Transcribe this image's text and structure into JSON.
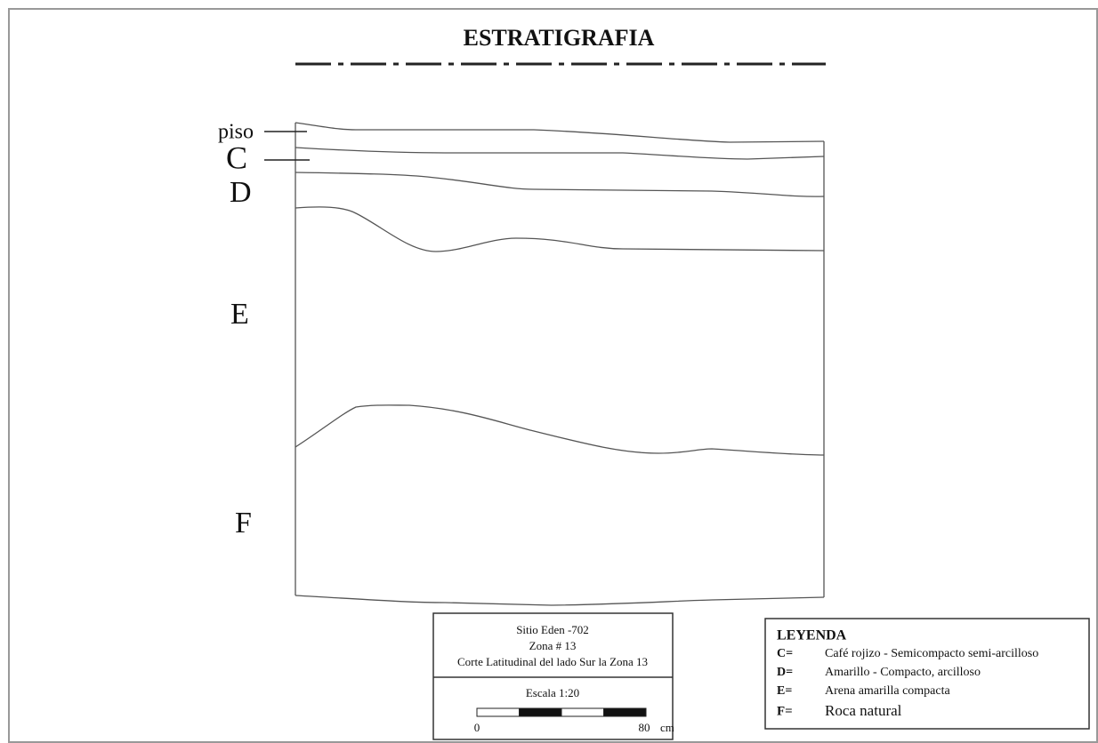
{
  "title": "ESTRATIGRAFIA",
  "layers": [
    "piso",
    "C",
    "D",
    "E",
    "F"
  ],
  "info": {
    "site": "Sitio Eden -702",
    "zone": "Zona # 13",
    "section": "Corte Latitudinal del lado Sur la Zona 13",
    "scale": "Escala 1:20",
    "scale_start": 0,
    "scale_end": 80,
    "scale_unit": "cm"
  },
  "legend": {
    "title": "LEYENDA",
    "entries": [
      {
        "key": "C=",
        "text": "Café rojizo - Semicompacto semi-arcilloso"
      },
      {
        "key": "D=",
        "text": "Amarillo - Compacto, arcilloso"
      },
      {
        "key": "E=",
        "text": "Arena amarilla compacta"
      },
      {
        "key": "F=",
        "text": "Roca natural"
      }
    ]
  }
}
